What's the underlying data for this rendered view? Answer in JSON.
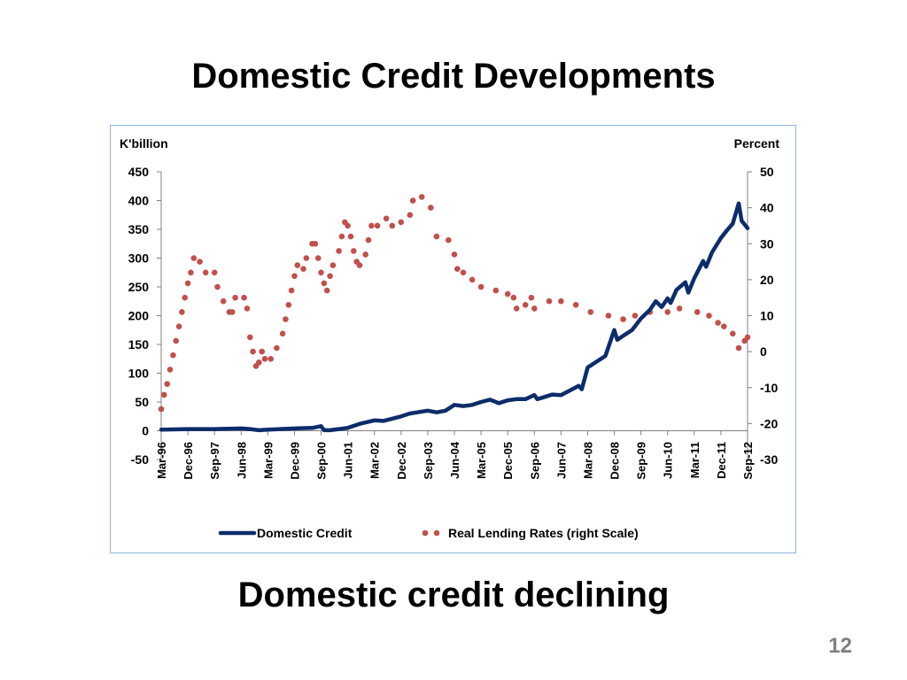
{
  "slide": {
    "title": "Domestic Credit Developments",
    "subtitle": "Domestic credit declining",
    "page_number": "12"
  },
  "chart_data": {
    "type": "line",
    "title": "",
    "left_axis_label": "K'billion",
    "right_axis_label": "Percent",
    "ylim": [
      -50,
      450
    ],
    "ylim_right": [
      -30,
      50
    ],
    "left_ticks": [
      -50,
      0,
      50,
      100,
      150,
      200,
      250,
      300,
      350,
      400,
      450
    ],
    "right_ticks": [
      -30,
      -20,
      -10,
      0,
      10,
      20,
      30,
      40,
      50
    ],
    "x_tick_labels": [
      "Mar-96",
      "Dec-96",
      "Sep-97",
      "Jun-98",
      "Mar-99",
      "Dec-99",
      "Sep-00",
      "Jun-01",
      "Mar-02",
      "Dec-02",
      "Sep-03",
      "Jun-04",
      "Mar-05",
      "Dec-05",
      "Sep-06",
      "Jun-07",
      "Mar-08",
      "Dec-08",
      "Sep-09",
      "Jun-10",
      "Mar-11",
      "Dec-11",
      "Sep-12"
    ],
    "x_range_months": [
      "Mar-96",
      "Sep-12"
    ],
    "grid": false,
    "legend_position": "bottom",
    "colors": {
      "domestic_credit": "#0d2c6b",
      "lending_rates": "#c0504d"
    },
    "series": [
      {
        "name": "Domestic Credit",
        "axis": "left",
        "style": "solid-thick",
        "points": [
          [
            "Mar-96",
            2
          ],
          [
            "Dec-96",
            3
          ],
          [
            "Sep-97",
            3
          ],
          [
            "Jun-98",
            4
          ],
          [
            "Sep-98",
            3
          ],
          [
            "Dec-98",
            1
          ],
          [
            "Mar-99",
            2
          ],
          [
            "Dec-99",
            4
          ],
          [
            "Jun-00",
            5
          ],
          [
            "Sep-00",
            8
          ],
          [
            "Oct-00",
            1
          ],
          [
            "Dec-00",
            1
          ],
          [
            "Jun-01",
            5
          ],
          [
            "Oct-01",
            12
          ],
          [
            "Mar-02",
            18
          ],
          [
            "Jun-02",
            17
          ],
          [
            "Dec-02",
            25
          ],
          [
            "Mar-03",
            30
          ],
          [
            "Sep-03",
            35
          ],
          [
            "Dec-03",
            32
          ],
          [
            "Mar-04",
            35
          ],
          [
            "Jun-04",
            45
          ],
          [
            "Sep-04",
            43
          ],
          [
            "Dec-04",
            45
          ],
          [
            "Mar-05",
            50
          ],
          [
            "Jun-05",
            54
          ],
          [
            "Sep-05",
            48
          ],
          [
            "Dec-05",
            53
          ],
          [
            "Mar-06",
            55
          ],
          [
            "Jun-06",
            55
          ],
          [
            "Sep-06",
            62
          ],
          [
            "Oct-06",
            55
          ],
          [
            "Dec-06",
            58
          ],
          [
            "Mar-07",
            63
          ],
          [
            "Jun-07",
            62
          ],
          [
            "Sep-07",
            70
          ],
          [
            "Dec-07",
            78
          ],
          [
            "Jan-08",
            72
          ],
          [
            "Mar-08",
            110
          ],
          [
            "Jun-08",
            120
          ],
          [
            "Sep-08",
            130
          ],
          [
            "Dec-08",
            175
          ],
          [
            "Jan-09",
            158
          ],
          [
            "Mar-09",
            165
          ],
          [
            "Jun-09",
            175
          ],
          [
            "Sep-09",
            195
          ],
          [
            "Dec-09",
            210
          ],
          [
            "Feb-10",
            225
          ],
          [
            "Apr-10",
            215
          ],
          [
            "Jun-10",
            230
          ],
          [
            "Jul-10",
            222
          ],
          [
            "Sep-10",
            245
          ],
          [
            "Dec-10",
            258
          ],
          [
            "Jan-11",
            240
          ],
          [
            "Mar-11",
            265
          ],
          [
            "Jun-11",
            295
          ],
          [
            "Jul-11",
            285
          ],
          [
            "Sep-11",
            310
          ],
          [
            "Dec-11",
            335
          ],
          [
            "Feb-12",
            348
          ],
          [
            "Apr-12",
            360
          ],
          [
            "Jun-12",
            395
          ],
          [
            "Jul-12",
            365
          ],
          [
            "Sep-12",
            352
          ]
        ]
      },
      {
        "name": "Real Lending Rates (right Scale)",
        "axis": "right",
        "style": "dotted",
        "points": [
          [
            "Mar-96",
            -16
          ],
          [
            "Apr-96",
            -12
          ],
          [
            "May-96",
            -9
          ],
          [
            "Jun-96",
            -5
          ],
          [
            "Jul-96",
            -1
          ],
          [
            "Aug-96",
            3
          ],
          [
            "Sep-96",
            7
          ],
          [
            "Oct-96",
            11
          ],
          [
            "Nov-96",
            15
          ],
          [
            "Dec-96",
            19
          ],
          [
            "Jan-97",
            22
          ],
          [
            "Feb-97",
            26
          ],
          [
            "Apr-97",
            25
          ],
          [
            "Jun-97",
            22
          ],
          [
            "Sep-97",
            22
          ],
          [
            "Oct-97",
            18
          ],
          [
            "Dec-97",
            14
          ],
          [
            "Feb-98",
            11
          ],
          [
            "Mar-98",
            11
          ],
          [
            "Apr-98",
            15
          ],
          [
            "Jul-98",
            15
          ],
          [
            "Aug-98",
            12
          ],
          [
            "Sep-98",
            4
          ],
          [
            "Oct-98",
            0
          ],
          [
            "Nov-98",
            -4
          ],
          [
            "Dec-98",
            -3
          ],
          [
            "Jan-99",
            0
          ],
          [
            "Feb-99",
            -2
          ],
          [
            "Apr-99",
            -2
          ],
          [
            "Jun-99",
            1
          ],
          [
            "Aug-99",
            5
          ],
          [
            "Sep-99",
            9
          ],
          [
            "Oct-99",
            13
          ],
          [
            "Nov-99",
            17
          ],
          [
            "Dec-99",
            21
          ],
          [
            "Jan-00",
            24
          ],
          [
            "Mar-00",
            23
          ],
          [
            "Apr-00",
            26
          ],
          [
            "Jun-00",
            30
          ],
          [
            "Jul-00",
            30
          ],
          [
            "Aug-00",
            26
          ],
          [
            "Sep-00",
            22
          ],
          [
            "Oct-00",
            19
          ],
          [
            "Nov-00",
            17
          ],
          [
            "Dec-00",
            21
          ],
          [
            "Jan-01",
            24
          ],
          [
            "Mar-01",
            28
          ],
          [
            "Apr-01",
            32
          ],
          [
            "May-01",
            36
          ],
          [
            "Jun-01",
            35
          ],
          [
            "Jul-01",
            32
          ],
          [
            "Aug-01",
            28
          ],
          [
            "Sep-01",
            25
          ],
          [
            "Oct-01",
            24
          ],
          [
            "Dec-01",
            27
          ],
          [
            "Jan-02",
            31
          ],
          [
            "Feb-02",
            35
          ],
          [
            "Apr-02",
            35
          ],
          [
            "Jul-02",
            37
          ],
          [
            "Sep-02",
            35
          ],
          [
            "Dec-02",
            36
          ],
          [
            "Mar-03",
            38
          ],
          [
            "Apr-03",
            42
          ],
          [
            "Jul-03",
            43
          ],
          [
            "Oct-03",
            40
          ],
          [
            "Dec-03",
            32
          ],
          [
            "Apr-04",
            31
          ],
          [
            "Jun-04",
            27
          ],
          [
            "Jul-04",
            23
          ],
          [
            "Sep-04",
            22
          ],
          [
            "Dec-04",
            20
          ],
          [
            "Mar-05",
            18
          ],
          [
            "Aug-05",
            17
          ],
          [
            "Dec-05",
            16
          ],
          [
            "Feb-06",
            15
          ],
          [
            "Mar-06",
            12
          ],
          [
            "Jun-06",
            13
          ],
          [
            "Aug-06",
            15
          ],
          [
            "Sep-06",
            12
          ],
          [
            "Feb-07",
            14
          ],
          [
            "Jun-07",
            14
          ],
          [
            "Nov-07",
            13
          ],
          [
            "Apr-08",
            11
          ],
          [
            "Oct-08",
            10
          ],
          [
            "Mar-09",
            9
          ],
          [
            "Jul-09",
            10
          ],
          [
            "Dec-09",
            11
          ],
          [
            "Jun-10",
            11
          ],
          [
            "Oct-10",
            12
          ],
          [
            "Apr-11",
            11
          ],
          [
            "Aug-11",
            10
          ],
          [
            "Nov-11",
            8
          ],
          [
            "Jan-12",
            7
          ],
          [
            "Apr-12",
            5
          ],
          [
            "Jun-12",
            1
          ],
          [
            "Aug-12",
            3
          ],
          [
            "Sep-12",
            4
          ]
        ]
      }
    ]
  }
}
